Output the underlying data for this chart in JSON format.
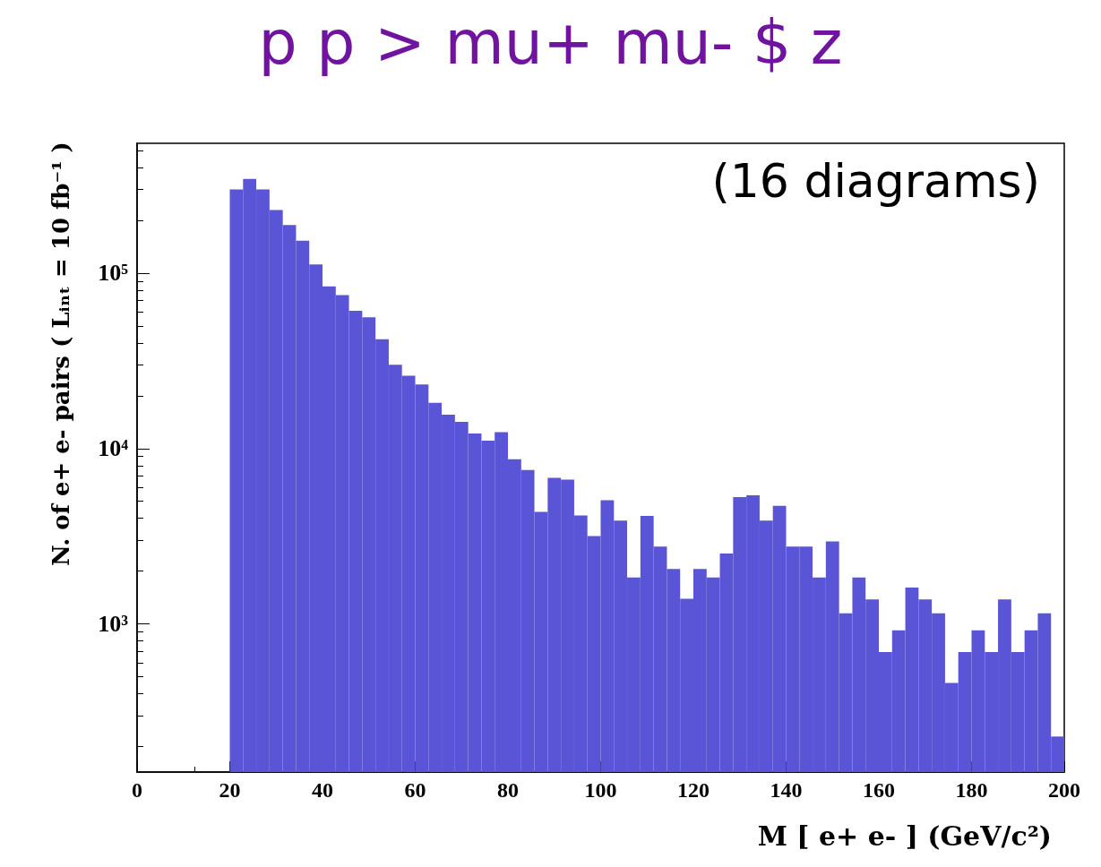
{
  "chart_data": {
    "type": "histogram",
    "title": "p p > mu+ mu- $ z",
    "xlabel": "M [ e+ e- ] (GeV/c²)",
    "ylabel": "N. of e+ e- pairs ( Lᵢₙₜ = 10 fb⁻¹ )",
    "annotations": [
      "(16 diagrams)"
    ],
    "color": "#5a55d6",
    "bins": [
      20,
      22.86,
      25.71,
      28.57,
      31.43,
      34.29,
      37.14,
      40,
      42.86,
      45.71,
      48.57,
      51.43,
      54.29,
      57.14,
      60,
      62.86,
      65.71,
      68.57,
      71.43,
      74.29,
      77.14,
      80,
      82.86,
      85.71,
      88.57,
      91.43,
      94.29,
      97.14,
      100,
      102.86,
      105.71,
      108.57,
      111.43,
      114.29,
      117.14,
      120,
      122.86,
      125.71,
      128.57,
      131.43,
      134.29,
      137.14,
      140,
      142.86,
      145.71,
      148.57,
      151.43,
      154.29,
      157.14,
      160,
      162.86,
      165.71,
      168.57,
      171.43,
      174.29,
      177.14,
      180,
      182.86,
      185.71,
      188.57,
      191.43,
      194.29,
      197.14,
      200
    ],
    "values": [
      300000,
      345000,
      300000,
      229000,
      188000,
      153000,
      112000,
      84000,
      75000,
      61000,
      56000,
      42000,
      30000,
      26000,
      23200,
      18200,
      15600,
      14200,
      12200,
      11100,
      12400,
      8700,
      7550,
      4350,
      6800,
      6650,
      4150,
      3170,
      5080,
      3880,
      1840,
      4130,
      2760,
      2060,
      1390,
      2060,
      1840,
      2520,
      5280,
      5410,
      3880,
      4720,
      2760,
      2760,
      1840,
      2950,
      1150,
      1840,
      1380,
      692,
      920,
      1610,
      1380,
      1150,
      461,
      692,
      920,
      692,
      1380,
      692,
      920,
      1150,
      228
    ],
    "xlim": [
      0,
      200
    ],
    "xticks": [
      0,
      20,
      40,
      60,
      80,
      100,
      120,
      140,
      160,
      180,
      200
    ],
    "ylim": [
      143,
      550000
    ],
    "log": "y",
    "yticks": [
      {
        "value": 1000,
        "label": "10³"
      },
      {
        "value": 10000,
        "label": "10⁴"
      },
      {
        "value": 100000,
        "label": "10⁵"
      }
    ],
    "grid": false
  }
}
